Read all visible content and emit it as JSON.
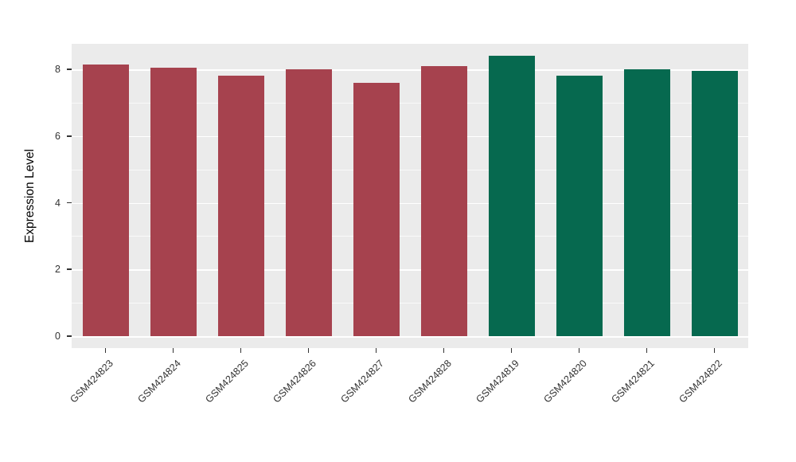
{
  "chart": {
    "ylabel": "Expression Level",
    "panel_bg": "#EBEBEB",
    "grid_color": "#FFFFFF",
    "tick_color": "#333333"
  },
  "chart_data": {
    "type": "bar",
    "title": "",
    "xlabel": "",
    "ylabel": "Expression Level",
    "categories": [
      "GSM424823",
      "GSM424824",
      "GSM424825",
      "GSM424826",
      "GSM424827",
      "GSM424828",
      "GSM424819",
      "GSM424820",
      "GSM424821",
      "GSM424822"
    ],
    "values": [
      8.15,
      8.05,
      7.8,
      8.0,
      7.6,
      8.1,
      8.4,
      7.8,
      8.0,
      7.95
    ],
    "bar_colors": [
      "#A6424E",
      "#A6424E",
      "#A6424E",
      "#A6424E",
      "#A6424E",
      "#A6424E",
      "#06694F",
      "#06694F",
      "#06694F",
      "#06694F"
    ],
    "groups": {
      "group1_color": "#A6424E",
      "group2_color": "#06694F"
    },
    "ylim": [
      0,
      8.75
    ],
    "yticks": [
      0,
      2,
      4,
      6,
      8
    ],
    "ytick_labels": [
      "0",
      "2",
      "4",
      "6",
      "8"
    ],
    "yticks_minor": [
      1,
      3,
      5,
      7
    ],
    "grid": true,
    "legend": "none"
  }
}
